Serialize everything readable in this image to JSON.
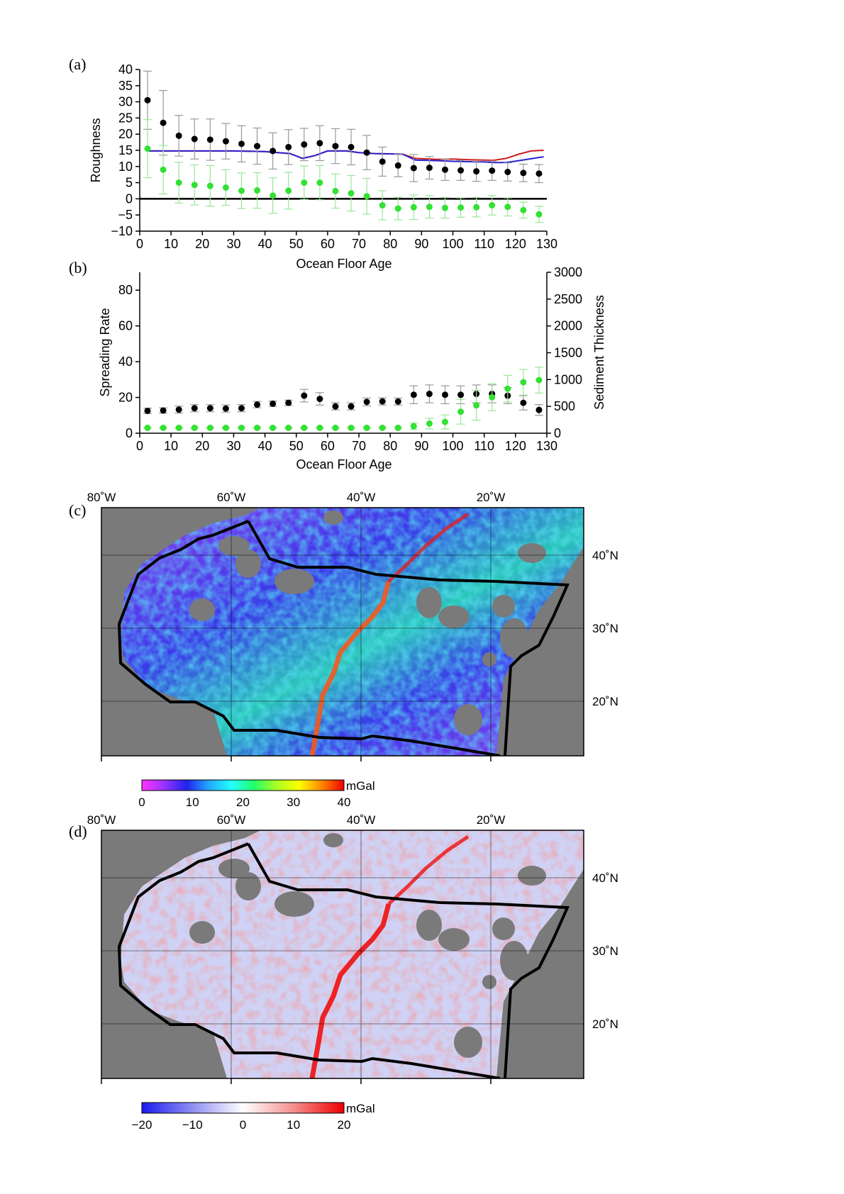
{
  "panels": {
    "a": "(a)",
    "b": "(b)",
    "c": "(c)",
    "d": "(d)"
  },
  "chart_data": [
    {
      "id": "a",
      "type": "scatter",
      "xlabel": "Ocean Floor Age",
      "ylabel": "Roughness",
      "xlim": [
        0,
        130
      ],
      "ylim": [
        -10,
        40
      ],
      "xticks": [
        0,
        10,
        20,
        30,
        40,
        50,
        60,
        70,
        80,
        90,
        100,
        110,
        120,
        130
      ],
      "yticks": [
        -10,
        -5,
        0,
        5,
        10,
        15,
        20,
        25,
        30,
        35,
        40
      ],
      "x": [
        2.5,
        7.5,
        12.5,
        17.5,
        22.5,
        27.5,
        32.5,
        37.5,
        42.5,
        47.5,
        52.5,
        57.5,
        62.5,
        67.5,
        72.5,
        77.5,
        82.5,
        87.5,
        92.5,
        97.5,
        102.5,
        107.5,
        112.5,
        117.5,
        122.5,
        127.5
      ],
      "series": [
        {
          "color": "#000000",
          "values": [
            30.5,
            23.5,
            19.5,
            18.5,
            18.3,
            17.8,
            17,
            16.3,
            14.8,
            16,
            16.8,
            17.2,
            16.3,
            16,
            14.3,
            11.5,
            10.3,
            9.5,
            9.6,
            9,
            8.8,
            8.5,
            8.7,
            8.3,
            8,
            7.8
          ],
          "err": [
            9,
            10,
            6.3,
            6.2,
            6.4,
            5.5,
            5.6,
            5.6,
            5.6,
            5.4,
            5,
            5.4,
            5.4,
            5.5,
            5.3,
            4.5,
            3.5,
            4.2,
            3.5,
            3.3,
            3.1,
            3.1,
            3,
            2.8,
            2.7,
            2.8
          ]
        },
        {
          "color": "#33e033",
          "values": [
            15.5,
            9,
            5,
            4.3,
            4,
            3.5,
            2.5,
            2.6,
            1,
            2.5,
            5,
            5,
            2.4,
            1.7,
            0.8,
            -2,
            -3,
            -2.6,
            -2.5,
            -2.8,
            -2.7,
            -2.6,
            -2,
            -2.5,
            -3.5,
            -4.8
          ],
          "err": [
            9,
            7.5,
            6.3,
            6.2,
            6.3,
            5.5,
            5.5,
            5.5,
            5.5,
            5.7,
            5.2,
            5.3,
            5.3,
            5.5,
            5.5,
            4.5,
            3.5,
            3.8,
            3.5,
            3.2,
            3,
            3,
            3,
            2.8,
            2.5,
            2.5
          ]
        }
      ],
      "lines": [
        {
          "color": "#cc1f1f",
          "x": [
            2.5,
            10,
            20,
            30,
            40,
            48,
            52,
            56,
            60,
            66,
            70,
            75,
            80,
            84,
            88,
            95,
            100,
            105,
            110,
            113,
            117,
            121,
            125,
            129
          ],
          "y": [
            14.8,
            14.8,
            14.8,
            14.8,
            14.6,
            14,
            12.5,
            13.4,
            14.8,
            14.8,
            14.3,
            14,
            13.9,
            13.8,
            12.5,
            12.2,
            12.3,
            12.1,
            12,
            11.9,
            12.5,
            13.8,
            14.8,
            15
          ]
        },
        {
          "color": "#2a22cc",
          "x": [
            2.5,
            10,
            20,
            30,
            40,
            48,
            52,
            56,
            60,
            66,
            70,
            75,
            80,
            84,
            88,
            95,
            100,
            105,
            110,
            113,
            117,
            121,
            125,
            129
          ],
          "y": [
            14.8,
            14.8,
            14.8,
            14.8,
            14.6,
            14,
            12.5,
            13.4,
            14.8,
            14.8,
            14.3,
            14,
            13.9,
            13.8,
            12,
            11.8,
            11.6,
            11.5,
            11.4,
            11.2,
            11.2,
            11.8,
            12.4,
            13
          ]
        }
      ],
      "zero_line": 0
    },
    {
      "id": "b",
      "type": "scatter",
      "xlabel": "Ocean Floor Age",
      "ylabel": "Spreading Rate",
      "y2label": "Sediment Thickness",
      "xlim": [
        0,
        130
      ],
      "ylim": [
        0,
        90
      ],
      "y2lim": [
        0,
        3000
      ],
      "xticks": [
        0,
        10,
        20,
        30,
        40,
        50,
        60,
        70,
        80,
        90,
        100,
        110,
        120,
        130
      ],
      "yticks": [
        0,
        20,
        40,
        60,
        80
      ],
      "y2ticks": [
        0,
        500,
        1000,
        1500,
        2000,
        2500,
        3000
      ],
      "x": [
        2.5,
        7.5,
        12.5,
        17.5,
        22.5,
        27.5,
        32.5,
        37.5,
        42.5,
        47.5,
        52.5,
        57.5,
        62.5,
        67.5,
        72.5,
        77.5,
        82.5,
        87.5,
        92.5,
        97.5,
        102.5,
        107.5,
        112.5,
        117.5,
        122.5,
        127.5
      ],
      "series": [
        {
          "color": "#000000",
          "axis": "left",
          "values": [
            12.5,
            12.7,
            13.2,
            14,
            14,
            13.8,
            14,
            16,
            16.5,
            17,
            21,
            19.2,
            15,
            15,
            17.5,
            17.8,
            17.7,
            21.5,
            22,
            21.5,
            21.5,
            22,
            22,
            21,
            17,
            13
          ],
          "err": [
            1.5,
            1.5,
            2,
            2,
            2,
            2,
            2,
            1.8,
            1.5,
            1.5,
            3.5,
            3.5,
            2,
            2,
            2.2,
            2,
            2,
            5,
            5,
            5,
            5,
            5,
            5,
            4.5,
            4,
            3
          ]
        },
        {
          "color": "#33e033",
          "axis": "right",
          "values": [
            100,
            100,
            100,
            100,
            100,
            100,
            100,
            100,
            100,
            100,
            100,
            100,
            100,
            100,
            100,
            100,
            100,
            130,
            180,
            210,
            400,
            520,
            670,
            830,
            950,
            990
          ],
          "err": [
            15,
            15,
            15,
            15,
            15,
            15,
            15,
            15,
            15,
            15,
            15,
            15,
            15,
            15,
            15,
            15,
            20,
            60,
            100,
            130,
            230,
            280,
            250,
            250,
            240,
            240
          ]
        }
      ]
    }
  ],
  "map_c": {
    "lon_labels": [
      "80˚W",
      "60˚W",
      "40˚W",
      "20˚W"
    ],
    "lat_labels": [
      "40˚N",
      "30˚N",
      "20˚N"
    ],
    "colorbar": {
      "unit": "mGal",
      "ticks": [
        "0",
        "10",
        "20",
        "30",
        "40"
      ],
      "colors": [
        "#ff33ff",
        "#9933ff",
        "#2222ee",
        "#22aaff",
        "#22ffff",
        "#22ff66",
        "#aaff22",
        "#ffff00",
        "#ff8800",
        "#ee0000"
      ]
    }
  },
  "map_d": {
    "lon_labels": [
      "80˚W",
      "60˚W",
      "40˚W",
      "20˚W"
    ],
    "lat_labels": [
      "40˚N",
      "30˚N",
      "20˚N"
    ],
    "colorbar": {
      "unit": "mGal",
      "ticks": [
        "−20",
        "−10",
        "0",
        "10",
        "20"
      ],
      "colors": [
        "#1a1aee",
        "#8f8ff2",
        "#ffffff",
        "#f58f8f",
        "#ee0000"
      ]
    }
  }
}
